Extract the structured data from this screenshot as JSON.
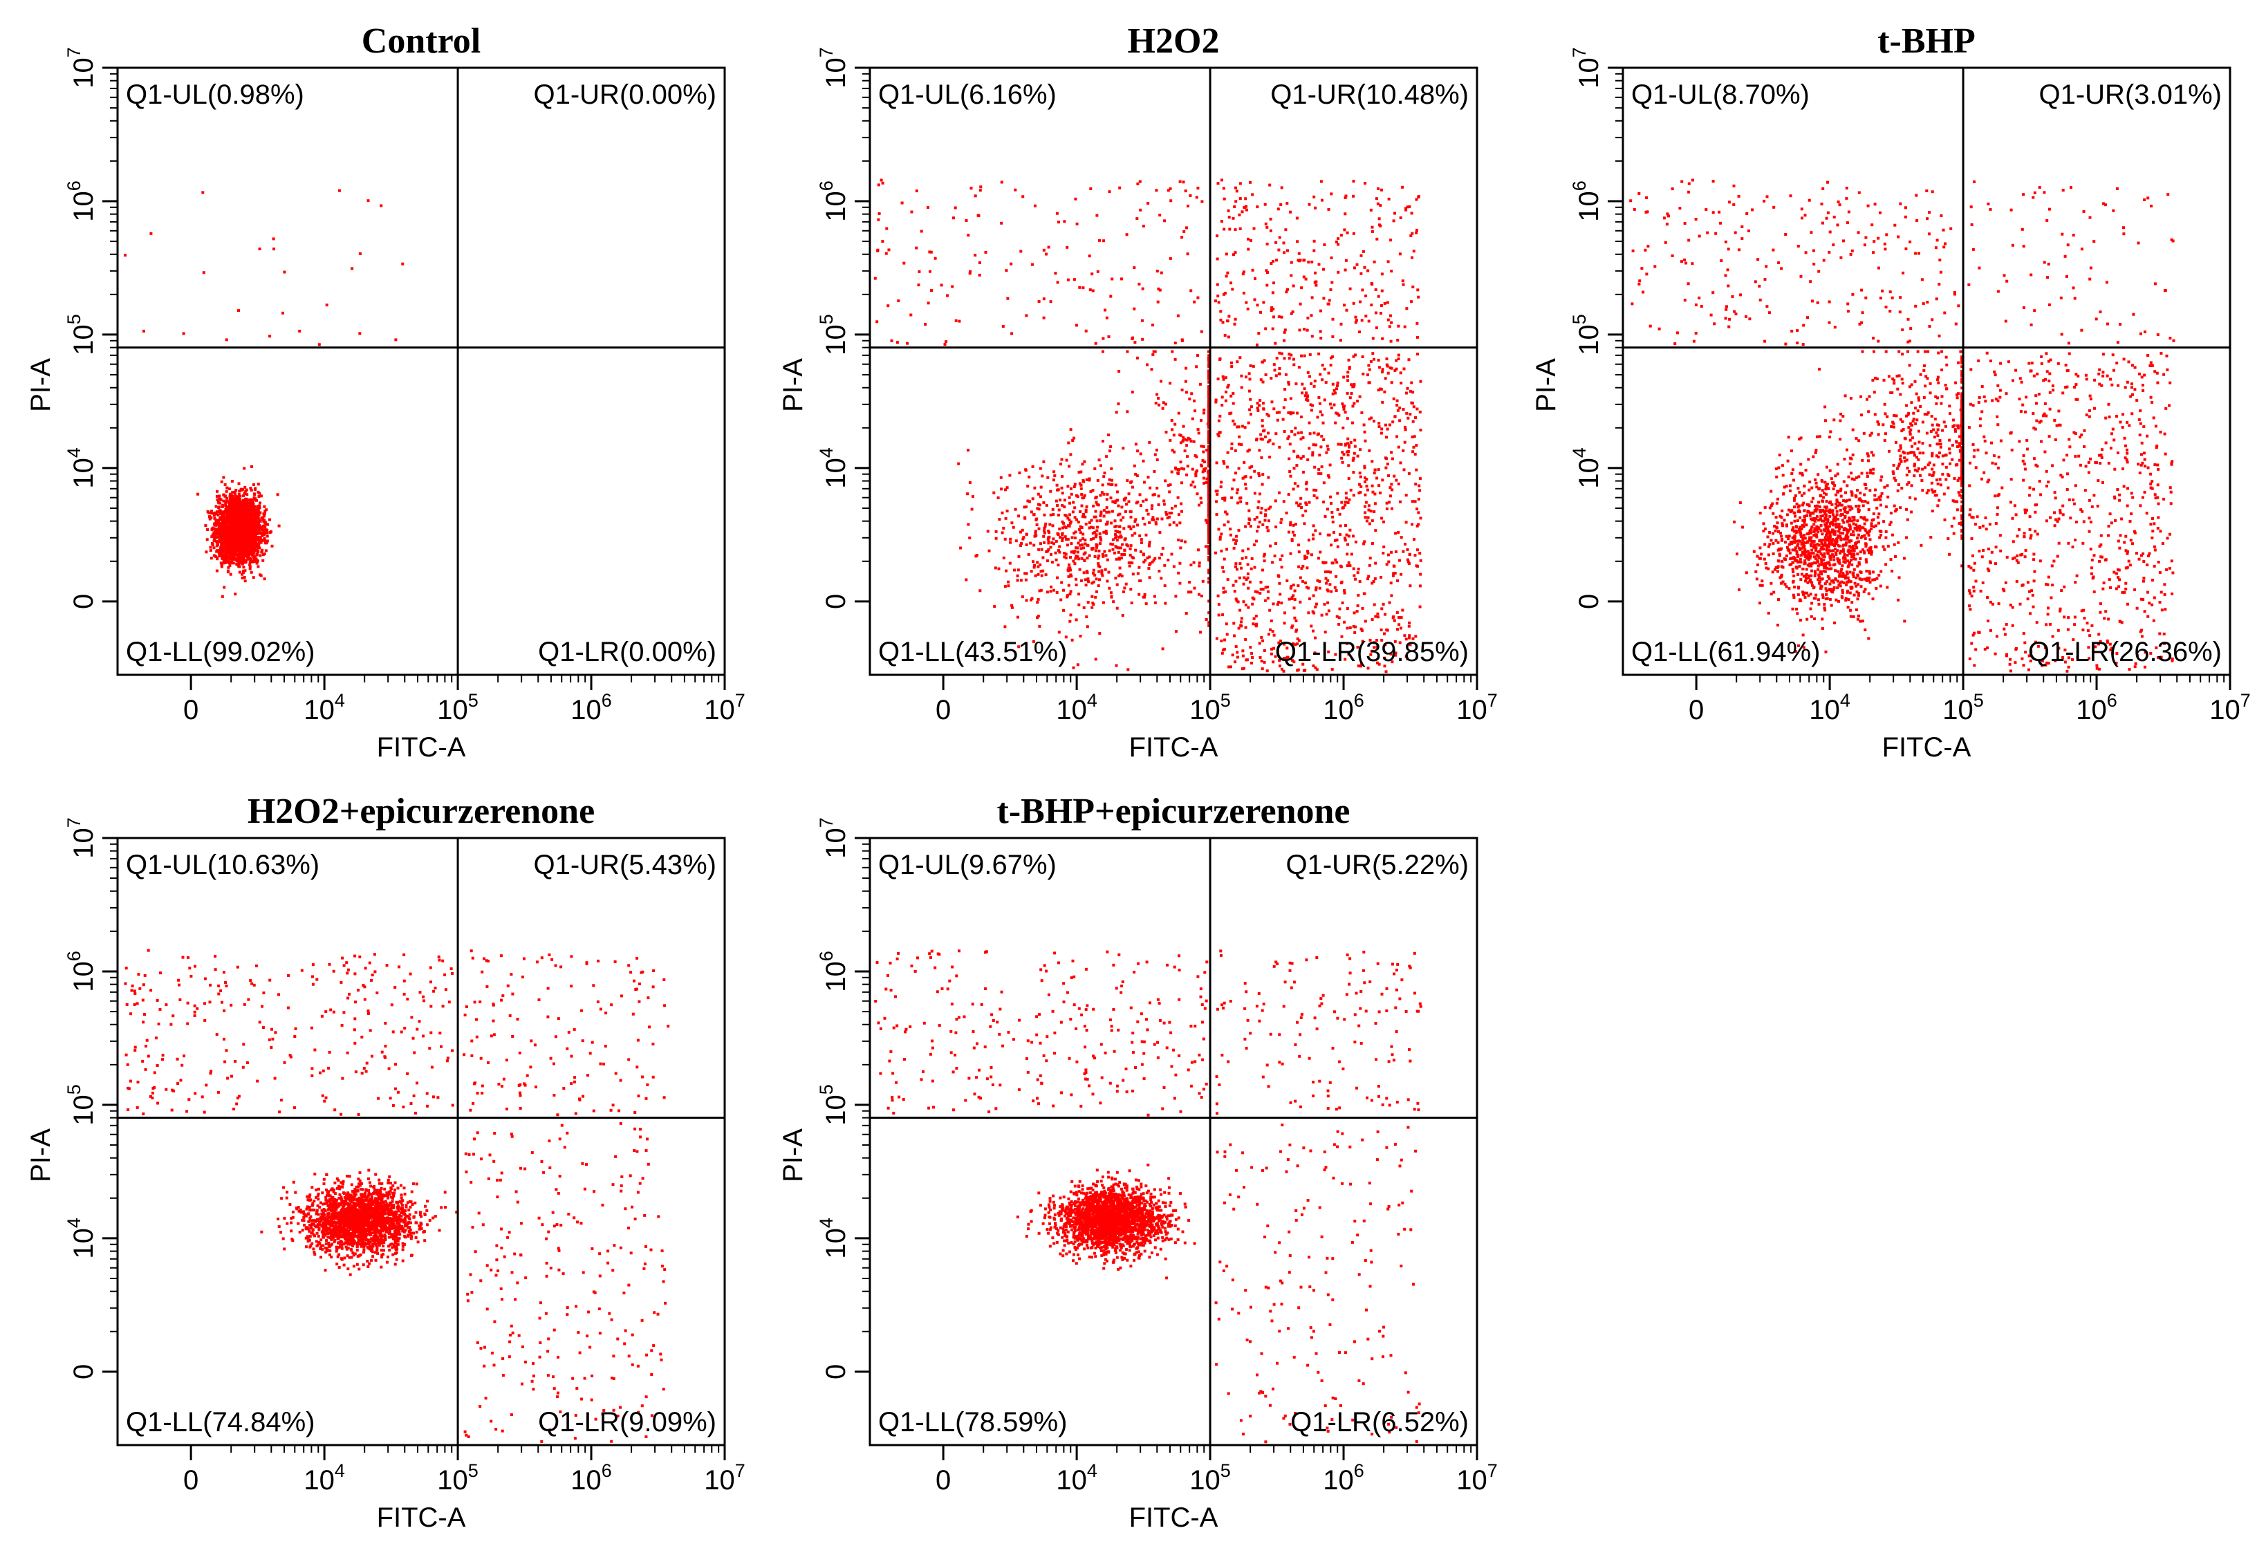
{
  "chart_data": [
    {
      "type": "scatter",
      "title": "Control",
      "xlabel": "FITC-A",
      "ylabel": "PI-A",
      "x_ticks": [
        {
          "base": "0",
          "exp": ""
        },
        {
          "base": "10",
          "exp": "4"
        },
        {
          "base": "10",
          "exp": "5"
        },
        {
          "base": "10",
          "exp": "6"
        },
        {
          "base": "10",
          "exp": "7"
        }
      ],
      "y_ticks": [
        {
          "base": "0",
          "exp": ""
        },
        {
          "base": "10",
          "exp": "4"
        },
        {
          "base": "10",
          "exp": "5"
        },
        {
          "base": "10",
          "exp": "6"
        },
        {
          "base": "10",
          "exp": "7"
        }
      ],
      "quadrants": {
        "UL": "Q1-UL(0.98%)",
        "UR": "Q1-UR(0.00%)",
        "LL": "Q1-LL(99.02%)",
        "LR": "Q1-LR(0.00%)"
      },
      "quadrant_percent": {
        "UL": 0.98,
        "UR": 0.0,
        "LL": 99.02,
        "LR": 0.0
      },
      "gate": {
        "x": 100000,
        "y": 80000
      },
      "point_color": "#ff0000"
    },
    {
      "type": "scatter",
      "title": "H2O2",
      "xlabel": "FITC-A",
      "ylabel": "PI-A",
      "x_ticks": [
        {
          "base": "0",
          "exp": ""
        },
        {
          "base": "10",
          "exp": "4"
        },
        {
          "base": "10",
          "exp": "5"
        },
        {
          "base": "10",
          "exp": "6"
        },
        {
          "base": "10",
          "exp": "7"
        }
      ],
      "y_ticks": [
        {
          "base": "0",
          "exp": ""
        },
        {
          "base": "10",
          "exp": "4"
        },
        {
          "base": "10",
          "exp": "5"
        },
        {
          "base": "10",
          "exp": "6"
        },
        {
          "base": "10",
          "exp": "7"
        }
      ],
      "quadrants": {
        "UL": "Q1-UL(6.16%)",
        "UR": "Q1-UR(10.48%)",
        "LL": "Q1-LL(43.51%)",
        "LR": "Q1-LR(39.85%)"
      },
      "quadrant_percent": {
        "UL": 6.16,
        "UR": 10.48,
        "LL": 43.51,
        "LR": 39.85
      },
      "gate": {
        "x": 100000,
        "y": 80000
      },
      "point_color": "#ff0000"
    },
    {
      "type": "scatter",
      "title": "t-BHP",
      "xlabel": "FITC-A",
      "ylabel": "PI-A",
      "x_ticks": [
        {
          "base": "0",
          "exp": ""
        },
        {
          "base": "10",
          "exp": "4"
        },
        {
          "base": "10",
          "exp": "5"
        },
        {
          "base": "10",
          "exp": "6"
        },
        {
          "base": "10",
          "exp": "7"
        }
      ],
      "y_ticks": [
        {
          "base": "0",
          "exp": ""
        },
        {
          "base": "10",
          "exp": "4"
        },
        {
          "base": "10",
          "exp": "5"
        },
        {
          "base": "10",
          "exp": "6"
        },
        {
          "base": "10",
          "exp": "7"
        }
      ],
      "quadrants": {
        "UL": "Q1-UL(8.70%)",
        "UR": "Q1-UR(3.01%)",
        "LL": "Q1-LL(61.94%)",
        "LR": "Q1-LR(26.36%)"
      },
      "quadrant_percent": {
        "UL": 8.7,
        "UR": 3.01,
        "LL": 61.94,
        "LR": 26.36
      },
      "gate": {
        "x": 100000,
        "y": 80000
      },
      "point_color": "#ff0000"
    },
    {
      "type": "scatter",
      "title": "H2O2+epicurzerenone",
      "xlabel": "FITC-A",
      "ylabel": "PI-A",
      "x_ticks": [
        {
          "base": "0",
          "exp": ""
        },
        {
          "base": "10",
          "exp": "4"
        },
        {
          "base": "10",
          "exp": "5"
        },
        {
          "base": "10",
          "exp": "6"
        },
        {
          "base": "10",
          "exp": "7"
        }
      ],
      "y_ticks": [
        {
          "base": "0",
          "exp": ""
        },
        {
          "base": "10",
          "exp": "4"
        },
        {
          "base": "10",
          "exp": "5"
        },
        {
          "base": "10",
          "exp": "6"
        },
        {
          "base": "10",
          "exp": "7"
        }
      ],
      "quadrants": {
        "UL": "Q1-UL(10.63%)",
        "UR": "Q1-UR(5.43%)",
        "LL": "Q1-LL(74.84%)",
        "LR": "Q1-LR(9.09%)"
      },
      "quadrant_percent": {
        "UL": 10.63,
        "UR": 5.43,
        "LL": 74.84,
        "LR": 9.09
      },
      "gate": {
        "x": 100000,
        "y": 80000
      },
      "point_color": "#ff0000"
    },
    {
      "type": "scatter",
      "title": "t-BHP+epicurzerenone",
      "xlabel": "FITC-A",
      "ylabel": "PI-A",
      "x_ticks": [
        {
          "base": "0",
          "exp": ""
        },
        {
          "base": "10",
          "exp": "4"
        },
        {
          "base": "10",
          "exp": "5"
        },
        {
          "base": "10",
          "exp": "6"
        },
        {
          "base": "10",
          "exp": "7"
        }
      ],
      "y_ticks": [
        {
          "base": "0",
          "exp": ""
        },
        {
          "base": "10",
          "exp": "4"
        },
        {
          "base": "10",
          "exp": "5"
        },
        {
          "base": "10",
          "exp": "6"
        },
        {
          "base": "10",
          "exp": "7"
        }
      ],
      "quadrants": {
        "UL": "Q1-UL(9.67%)",
        "UR": "Q1-UR(5.22%)",
        "LL": "Q1-LL(78.59%)",
        "LR": "Q1-LR(6.52%)"
      },
      "quadrant_percent": {
        "UL": 9.67,
        "UR": 5.22,
        "LL": 78.59,
        "LR": 6.52
      },
      "gate": {
        "x": 100000,
        "y": 80000
      },
      "point_color": "#ff0000"
    }
  ]
}
